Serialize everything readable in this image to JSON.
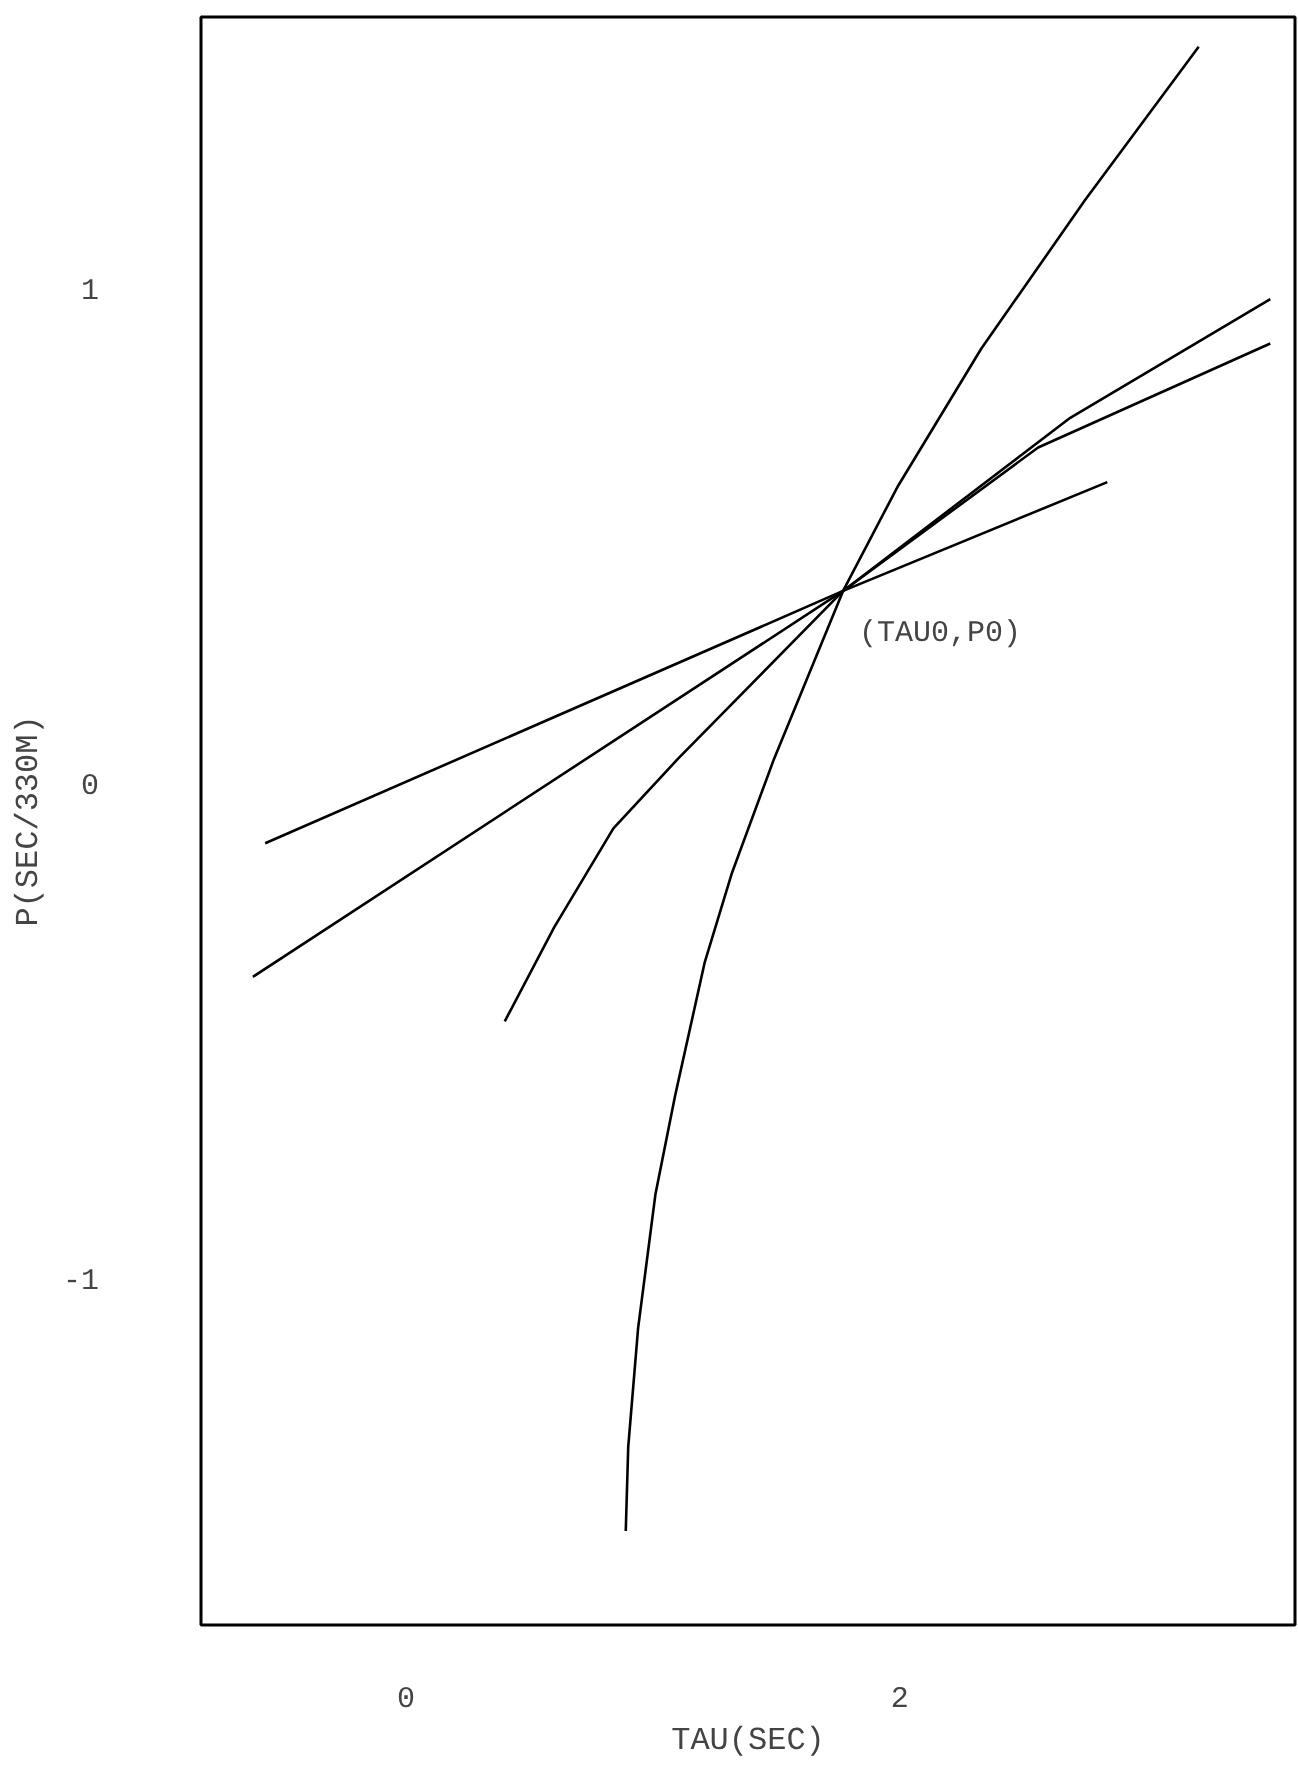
{
  "chart_data": {
    "type": "line",
    "xlabel": "TAU(SEC)",
    "ylabel": "P(SEC/330M)",
    "xlim": [
      -0.83,
      3.6
    ],
    "ylim": [
      -1.7,
      1.55
    ],
    "xticks": [
      0,
      2
    ],
    "yticks": [
      -1,
      0,
      1
    ],
    "grid": false,
    "marker": "none",
    "line_style": "solid",
    "series": [
      {
        "color": "#000000",
        "x": [
          -0.57,
          1.77,
          2.84
        ],
        "values": [
          -0.12,
          0.39,
          0.61
        ]
      },
      {
        "color": "#000000",
        "x": [
          -0.62,
          1.77,
          2.69,
          3.5
        ],
        "values": [
          -0.39,
          0.39,
          0.74,
          0.98
        ]
      },
      {
        "color": "#000000",
        "x": [
          0.4,
          0.6,
          0.84,
          1.1,
          1.77,
          2.56,
          3.5
        ],
        "values": [
          -0.48,
          -0.29,
          -0.09,
          0.05,
          0.39,
          0.68,
          0.89
        ]
      },
      {
        "color": "#000000",
        "x": [
          0.89,
          0.9,
          0.94,
          1.01,
          1.09,
          1.21,
          1.32,
          1.49,
          1.77,
          1.99,
          2.33,
          2.75,
          3.21
        ],
        "values": [
          -1.51,
          -1.34,
          -1.1,
          -0.83,
          -0.63,
          -0.36,
          -0.18,
          0.05,
          0.39,
          0.6,
          0.88,
          1.18,
          1.49
        ]
      }
    ],
    "annotations": [
      {
        "text": "(TAU0,P0)",
        "x": 1.77,
        "y": 0.39
      }
    ]
  }
}
